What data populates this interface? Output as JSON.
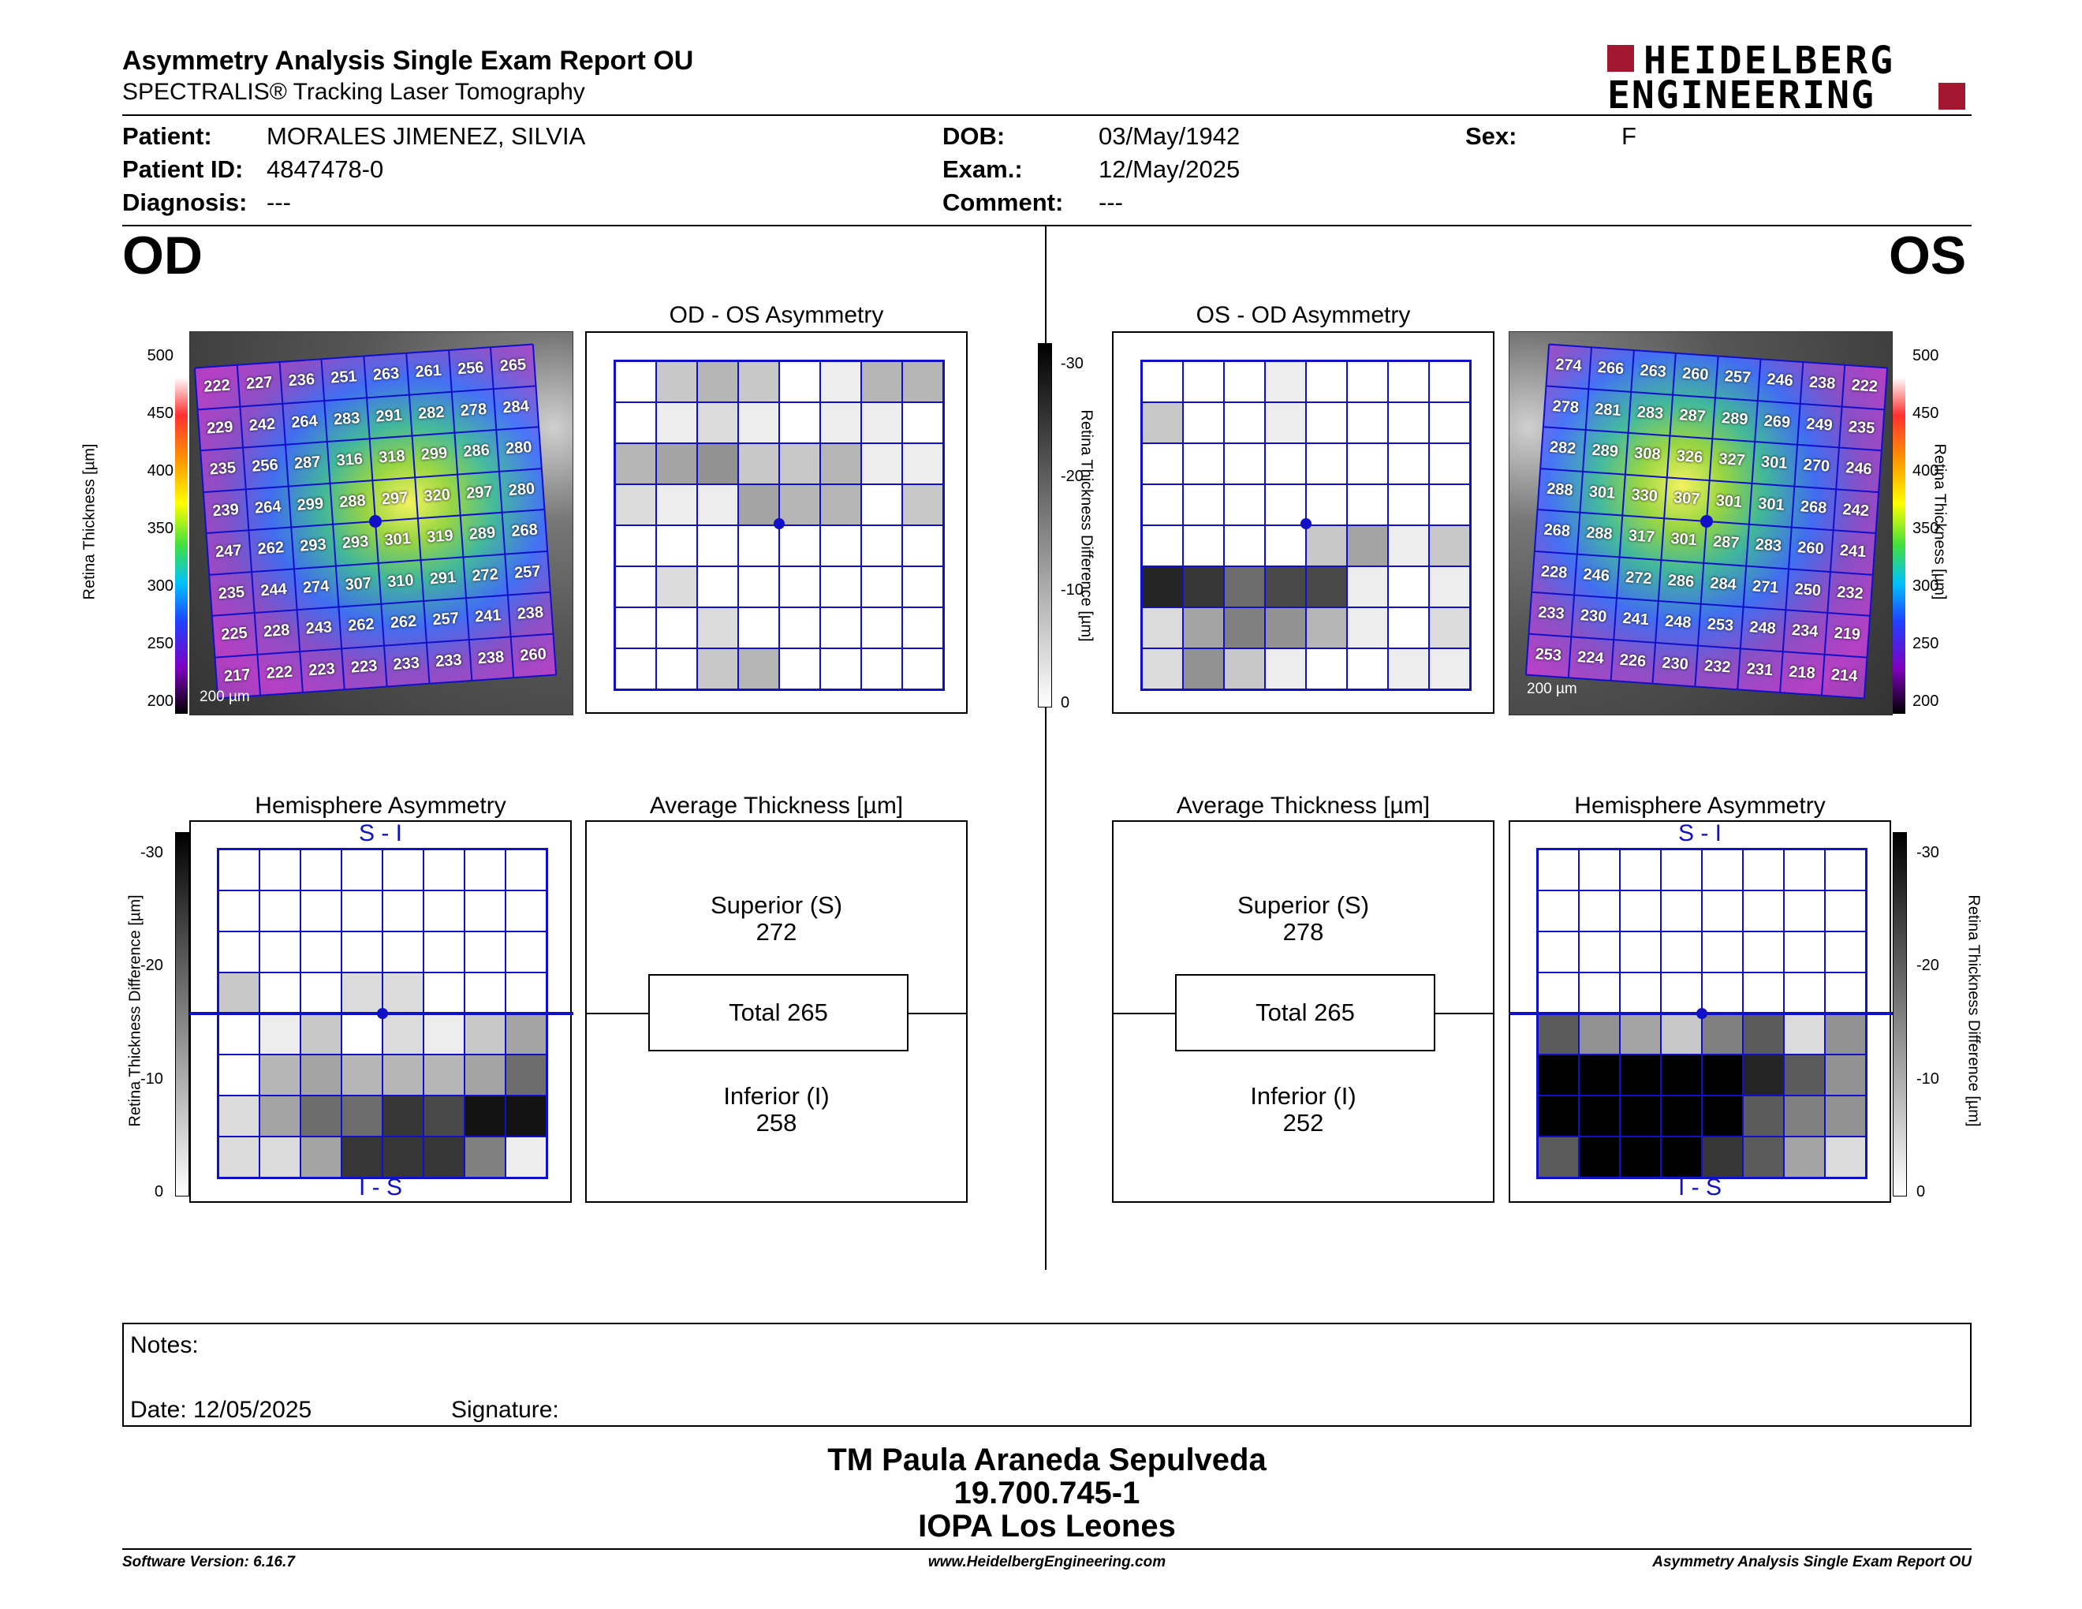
{
  "header": {
    "title": "Asymmetry Analysis Single Exam Report OU",
    "subtitle": "SPECTRALIS® Tracking Laser Tomography",
    "logo_line1": "HEIDELBERG",
    "logo_line2": "ENGINEERING"
  },
  "patient": {
    "patient_label": "Patient:",
    "patient_value": "MORALES JIMENEZ, SILVIA",
    "id_label": "Patient ID:",
    "id_value": "4847478-0",
    "diag_label": "Diagnosis:",
    "diag_value": "---",
    "dob_label": "DOB:",
    "dob_value": "03/May/1942",
    "exam_label": "Exam.:",
    "exam_value": "12/May/2025",
    "comment_label": "Comment:",
    "comment_value": "---",
    "sex_label": "Sex:",
    "sex_value": "F"
  },
  "eyes": {
    "od": "OD",
    "os": "OS"
  },
  "od": {
    "thickness_axis_label": "Retina Thickness [µm]",
    "thickness_ticks": [
      "500",
      "450",
      "400",
      "350",
      "300",
      "250",
      "200"
    ],
    "scale_bar": "200 µm",
    "map_values": [
      [
        "222",
        "227",
        "236",
        "251",
        "263",
        "261",
        "256",
        "265"
      ],
      [
        "229",
        "242",
        "264",
        "283",
        "291",
        "282",
        "278",
        "284"
      ],
      [
        "235",
        "256",
        "287",
        "316",
        "318",
        "299",
        "286",
        "280"
      ],
      [
        "239",
        "264",
        "299",
        "288",
        "297",
        "320",
        "297",
        "280"
      ],
      [
        "247",
        "262",
        "293",
        "293",
        "301",
        "319",
        "289",
        "268"
      ],
      [
        "235",
        "244",
        "274",
        "307",
        "310",
        "291",
        "272",
        "257"
      ],
      [
        "225",
        "228",
        "243",
        "262",
        "262",
        "257",
        "241",
        "238"
      ],
      [
        "217",
        "222",
        "223",
        "223",
        "233",
        "233",
        "238",
        "260"
      ]
    ],
    "asym_title": "OD - OS Asymmetry",
    "asym_grid": [
      [
        0,
        3,
        4,
        3,
        0,
        1,
        4,
        4
      ],
      [
        0,
        1,
        2,
        1,
        0,
        1,
        1,
        0
      ],
      [
        4,
        5,
        6,
        3,
        3,
        4,
        1,
        1
      ],
      [
        2,
        1,
        1,
        5,
        4,
        4,
        0,
        3
      ],
      [
        0,
        0,
        0,
        0,
        0,
        0,
        0,
        0
      ],
      [
        0,
        2,
        0,
        0,
        0,
        0,
        0,
        0
      ],
      [
        0,
        0,
        2,
        0,
        0,
        0,
        0,
        0
      ],
      [
        0,
        0,
        3,
        4,
        0,
        0,
        0,
        0
      ]
    ],
    "hemi_title": "Hemisphere Asymmetry",
    "hemi_top": "S - I",
    "hemi_bottom": "I - S",
    "hemi_axis_label": "Retina Thickness Difference [µm]",
    "hemi_ticks": [
      "-30",
      "-20",
      "-10",
      "0"
    ],
    "hemi_grid": [
      [
        0,
        0,
        0,
        0,
        0,
        0,
        0,
        0
      ],
      [
        0,
        0,
        0,
        0,
        0,
        0,
        0,
        0
      ],
      [
        0,
        0,
        0,
        0,
        0,
        0,
        0,
        0
      ],
      [
        3,
        0,
        0,
        2,
        2,
        0,
        0,
        0
      ],
      [
        0,
        1,
        3,
        0,
        2,
        1,
        3,
        5
      ],
      [
        0,
        4,
        5,
        4,
        4,
        4,
        5,
        8
      ],
      [
        2,
        5,
        8,
        8,
        11,
        10,
        13,
        13
      ],
      [
        2,
        2,
        5,
        11,
        11,
        11,
        7,
        1
      ]
    ],
    "avg_title": "Average Thickness [µm]",
    "superior_label": "Superior (S)",
    "superior_value": "272",
    "total_label": "Total 265",
    "inferior_label": "Inferior (I)",
    "inferior_value": "258"
  },
  "os": {
    "thickness_axis_label": "Retina Thickness [µm]",
    "thickness_ticks": [
      "500",
      "450",
      "400",
      "350",
      "300",
      "250",
      "200"
    ],
    "scale_bar": "200 µm",
    "map_values": [
      [
        "274",
        "266",
        "263",
        "260",
        "257",
        "246",
        "238",
        "222"
      ],
      [
        "278",
        "281",
        "283",
        "287",
        "289",
        "269",
        "249",
        "235"
      ],
      [
        "282",
        "289",
        "308",
        "326",
        "327",
        "301",
        "270",
        "246"
      ],
      [
        "288",
        "301",
        "330",
        "307",
        "301",
        "301",
        "268",
        "242"
      ],
      [
        "268",
        "288",
        "317",
        "301",
        "287",
        "283",
        "260",
        "241"
      ],
      [
        "228",
        "246",
        "272",
        "286",
        "284",
        "271",
        "250",
        "232"
      ],
      [
        "233",
        "230",
        "241",
        "248",
        "253",
        "248",
        "234",
        "219"
      ],
      [
        "253",
        "224",
        "226",
        "230",
        "232",
        "231",
        "218",
        "214"
      ]
    ],
    "asym_title": "OS - OD Asymmetry",
    "asym_grid": [
      [
        0,
        0,
        0,
        1,
        0,
        0,
        0,
        0
      ],
      [
        3,
        0,
        0,
        1,
        0,
        0,
        0,
        0
      ],
      [
        0,
        0,
        0,
        0,
        0,
        0,
        0,
        0
      ],
      [
        0,
        0,
        0,
        0,
        0,
        0,
        0,
        0
      ],
      [
        0,
        0,
        0,
        0,
        3,
        5,
        1,
        3
      ],
      [
        12,
        11,
        8,
        10,
        10,
        1,
        0,
        1
      ],
      [
        2,
        5,
        7,
        6,
        4,
        1,
        0,
        2
      ],
      [
        2,
        6,
        3,
        1,
        0,
        0,
        1,
        1
      ]
    ],
    "diff_axis_label": "Retina Thickness Difference [µm]",
    "diff_ticks": [
      "-30",
      "-20",
      "-10",
      "0"
    ],
    "hemi_title": "Hemisphere Asymmetry",
    "hemi_top": "S - I",
    "hemi_bottom": "I - S",
    "hemi_axis_label": "Retina Thickness Difference [µm]",
    "hemi_ticks": [
      "-30",
      "-20",
      "-10",
      "0"
    ],
    "hemi_grid": [
      [
        0,
        0,
        0,
        0,
        0,
        0,
        0,
        0
      ],
      [
        0,
        0,
        0,
        0,
        0,
        0,
        0,
        0
      ],
      [
        0,
        0,
        0,
        0,
        0,
        0,
        0,
        0
      ],
      [
        0,
        0,
        0,
        0,
        0,
        0,
        0,
        0
      ],
      [
        9,
        6,
        5,
        3,
        7,
        9,
        2,
        6
      ],
      [
        14,
        14,
        14,
        14,
        14,
        12,
        9,
        6
      ],
      [
        14,
        14,
        14,
        14,
        14,
        9,
        7,
        6
      ],
      [
        9,
        14,
        14,
        14,
        11,
        9,
        5,
        2
      ]
    ],
    "avg_title": "Average Thickness [µm]",
    "superior_label": "Superior (S)",
    "superior_value": "278",
    "total_label": "Total 265",
    "inferior_label": "Inferior (I)",
    "inferior_value": "252"
  },
  "notes": {
    "notes_label": "Notes:",
    "date_label": "Date: 12/05/2025",
    "signature_label": "Signature:"
  },
  "stamp": {
    "line1": "TM Paula Araneda Sepulveda",
    "line2": "19.700.745-1",
    "line3": "IOPA Los Leones"
  },
  "footer": {
    "software": "Software Version: 6.16.7",
    "website": "www.HeidelbergEngineering.com",
    "report": "Asymmetry Analysis Single Exam Report OU"
  },
  "colors": {
    "grid_blue": "#1010c8",
    "logo_red": "#a31830"
  }
}
